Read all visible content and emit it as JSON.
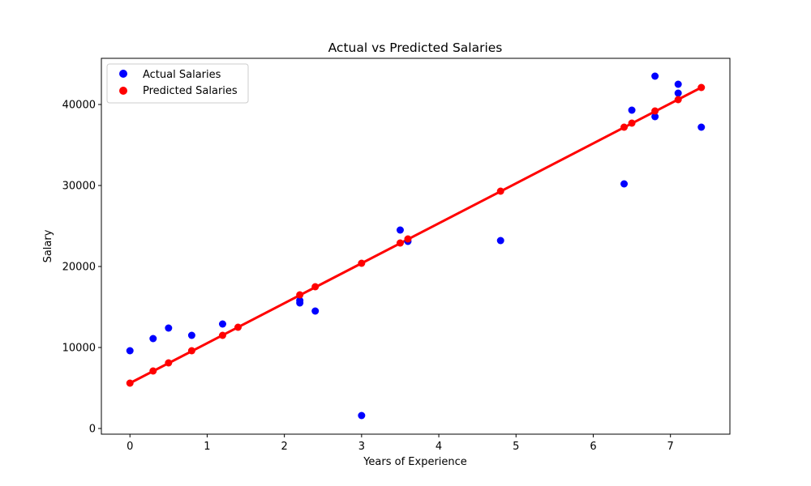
{
  "chart_data": {
    "type": "scatter",
    "title": "Actual vs Predicted Salaries",
    "xlabel": "Years of Experience",
    "ylabel": "Salary",
    "xlim": [
      -0.37,
      7.77
    ],
    "ylim": [
      -700,
      45700
    ],
    "xticks": [
      0,
      1,
      2,
      3,
      4,
      5,
      6,
      7
    ],
    "yticks": [
      0,
      10000,
      20000,
      30000,
      40000
    ],
    "grid": false,
    "legend": "upper-left",
    "series": [
      {
        "name": "Actual Salaries",
        "kind": "scatter",
        "color": "#0000ff",
        "x": [
          0.0,
          0.3,
          0.5,
          0.8,
          1.2,
          2.2,
          2.2,
          2.4,
          3.0,
          3.5,
          3.6,
          4.8,
          6.4,
          6.5,
          6.8,
          6.8,
          7.1,
          7.1,
          7.4
        ],
        "y": [
          9600,
          11100,
          12400,
          11500,
          12900,
          15500,
          15800,
          14500,
          1600,
          24500,
          23100,
          23200,
          30200,
          39300,
          43500,
          38500,
          41400,
          42500,
          37200
        ]
      },
      {
        "name": "Predicted Salaries",
        "kind": "scatter",
        "color": "#ff0000",
        "x": [
          0.0,
          0.3,
          0.5,
          0.8,
          1.2,
          1.4,
          2.2,
          2.4,
          3.0,
          3.5,
          3.6,
          4.8,
          6.4,
          6.5,
          6.8,
          7.1,
          7.4
        ],
        "y": [
          5600,
          7100,
          8100,
          9600,
          11500,
          12500,
          16500,
          17500,
          20400,
          22900,
          23400,
          29300,
          37200,
          37700,
          39200,
          40600,
          42100
        ]
      }
    ],
    "regression_line": {
      "color": "#ff0000",
      "x": [
        0.0,
        7.4
      ],
      "y": [
        5600,
        42100
      ]
    }
  }
}
